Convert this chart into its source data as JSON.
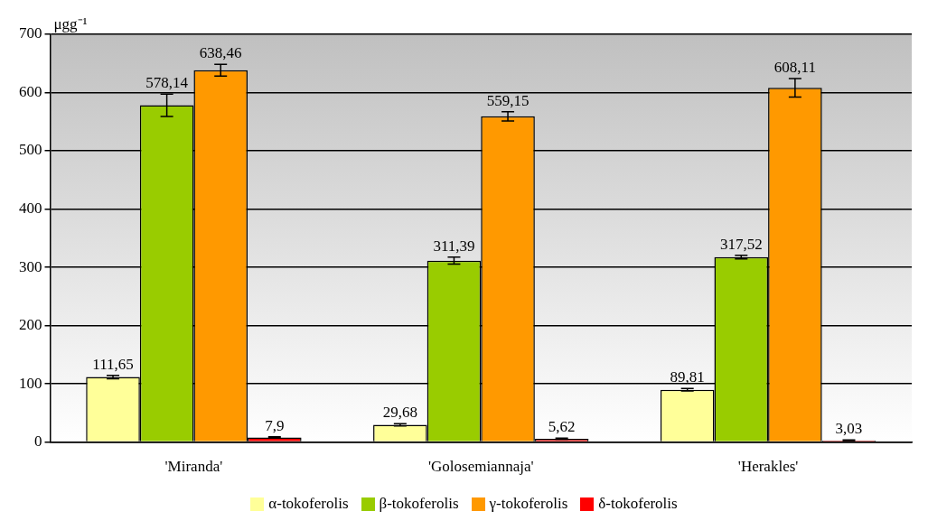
{
  "chart_data": {
    "type": "bar",
    "ylabel": "μgg⁻¹",
    "categories": [
      "'Miranda'",
      "'Golosemiannaja'",
      "'Herakles'"
    ],
    "series": [
      {
        "name": "α-tokoferolis",
        "color": "#ffff99",
        "values": [
          111.65,
          29.68,
          89.81
        ],
        "errors": [
          3,
          2,
          2
        ],
        "value_labels": [
          "111,65",
          "29,68",
          "89,81"
        ]
      },
      {
        "name": "β-tokoferolis",
        "color": "#99cc00",
        "values": [
          578.14,
          311.39,
          317.52
        ],
        "errors": [
          19,
          6,
          3
        ],
        "value_labels": [
          "578,14",
          "311,39",
          "317,52"
        ]
      },
      {
        "name": "γ-tokoferolis",
        "color": "#ff9900",
        "values": [
          638.46,
          559.15,
          608.11
        ],
        "errors": [
          10,
          8,
          16
        ],
        "value_labels": [
          "638,46",
          "559,15",
          "608,11"
        ]
      },
      {
        "name": "δ-tokoferolis",
        "color": "#ff0000",
        "values": [
          7.9,
          5.62,
          3.03
        ],
        "errors": [
          1,
          1,
          0.5
        ],
        "value_labels": [
          "7,9",
          "5,62",
          "3,03"
        ]
      }
    ],
    "ylim": [
      0,
      700
    ],
    "yticks": [
      0,
      100,
      200,
      300,
      400,
      500,
      600,
      700
    ],
    "grid": "y",
    "legend": "bottom"
  }
}
